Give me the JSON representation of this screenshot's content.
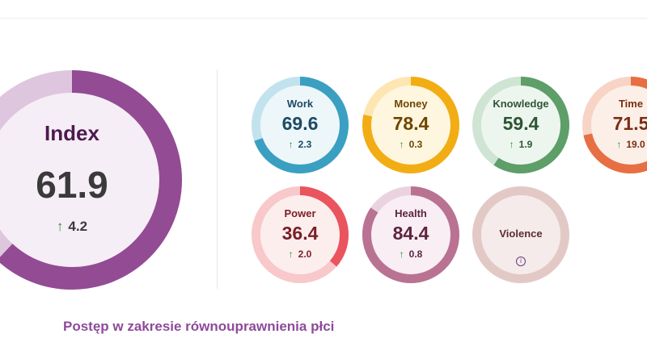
{
  "index": {
    "title": "Index",
    "value": 61.9,
    "value_text": "61.9",
    "change": "4.2",
    "track": "#dfc6df",
    "bar": "#934b94",
    "fill": "#f6eef6",
    "arrow": "↑"
  },
  "domains": [
    {
      "key": "work",
      "title": "Work",
      "value": 69.6,
      "value_text": "69.6",
      "change": "2.3",
      "arrow": "↑",
      "bar": "#3b9fc2",
      "track": "#c2e3ee",
      "fill": "#edf7fa",
      "text": "#1d4a63"
    },
    {
      "key": "money",
      "title": "Money",
      "value": 78.4,
      "value_text": "78.4",
      "change": "0.3",
      "arrow": "↑",
      "bar": "#f2ad14",
      "track": "#fde6b2",
      "fill": "#fff6df",
      "text": "#6d4600"
    },
    {
      "key": "knowledge",
      "title": "Knowledge",
      "value": 59.4,
      "value_text": "59.4",
      "change": "1.9",
      "arrow": "↑",
      "bar": "#5e9e69",
      "track": "#cfe4d2",
      "fill": "#edf6ee",
      "text": "#2e5534"
    },
    {
      "key": "time",
      "title": "Time",
      "value": 71.5,
      "value_text": "71.5",
      "change": "19.0",
      "arrow": "↑",
      "bar": "#e76f43",
      "track": "#f8d4c6",
      "fill": "#fcefe8",
      "text": "#7a2e14"
    },
    {
      "key": "power",
      "title": "Power",
      "value": 36.4,
      "value_text": "36.4",
      "change": "2.0",
      "arrow": "↑",
      "bar": "#e9545e",
      "track": "#f8c8cb",
      "fill": "#fdeeee",
      "text": "#7a1f27"
    },
    {
      "key": "health",
      "title": "Health",
      "value": 84.4,
      "value_text": "84.4",
      "change": "0.8",
      "arrow": "↑",
      "bar": "#b97292",
      "track": "#ead3de",
      "fill": "#f8eef3",
      "text": "#5d2541"
    },
    {
      "key": "violence",
      "title": "Violence",
      "info_icon": "info-icon",
      "info_glyph": "i",
      "bar": "#e3c9c6",
      "track": "#e3c9c6",
      "fill": "#f5ebea",
      "text": "#5a2d32"
    }
  ],
  "footer": {
    "text": "Postęp w zakresie równouprawnienia płci"
  }
}
